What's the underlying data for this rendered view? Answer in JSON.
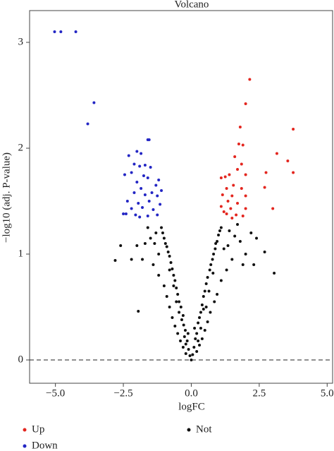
{
  "chart_data": {
    "type": "scatter",
    "title": "Volcano",
    "x_label": "logFC",
    "y_label": "−log10 (adj. P-value)",
    "xlim": [
      -5.95,
      5.2
    ],
    "ylim": [
      -0.22,
      3.3
    ],
    "xticks": [
      {
        "value": -5,
        "label": "−5.0"
      },
      {
        "value": -2.5,
        "label": "−2.5"
      },
      {
        "value": 0,
        "label": "0.0"
      },
      {
        "value": 2.5,
        "label": "2.5"
      },
      {
        "value": 5,
        "label": "5.0"
      }
    ],
    "yticks": [
      0,
      1,
      2,
      3
    ],
    "hline": 0,
    "series": [
      {
        "name": "Up",
        "color": "#e3261f",
        "x": [
          2.15,
          2.0,
          1.8,
          3.75,
          3.55,
          3.15,
          1.75,
          1.9,
          1.6,
          1.85,
          2.0,
          1.25,
          1.4,
          1.1,
          1.7,
          2.75,
          3.75,
          1.55,
          1.3,
          1.85,
          2.7,
          1.15,
          1.5,
          2.0,
          1.35,
          1.7,
          1.1,
          1.45,
          2.0,
          3.0,
          1.3,
          1.65,
          1.5,
          1.2,
          1.9
        ],
        "values": [
          2.65,
          2.42,
          2.2,
          2.18,
          1.88,
          1.95,
          2.04,
          2.03,
          1.92,
          1.85,
          1.75,
          1.73,
          1.75,
          1.72,
          1.8,
          1.77,
          1.77,
          1.65,
          1.62,
          1.62,
          1.63,
          1.56,
          1.55,
          1.55,
          1.5,
          1.48,
          1.45,
          1.43,
          1.43,
          1.43,
          1.38,
          1.37,
          1.34,
          1.4,
          1.36
        ]
      },
      {
        "name": "Down",
        "color": "#2326c4",
        "x": [
          -5.03,
          -4.8,
          -4.25,
          -3.58,
          -3.81,
          -1.55,
          -1.6,
          -2.3,
          -2.0,
          -1.85,
          -2.1,
          -1.9,
          -1.7,
          -1.5,
          -2.45,
          -2.2,
          -1.75,
          -1.6,
          -1.2,
          -1.3,
          -2.0,
          -1.85,
          -1.45,
          -1.1,
          -2.1,
          -1.7,
          -1.25,
          -2.35,
          -1.95,
          -1.55,
          -1.15,
          -2.2,
          -1.8,
          -1.4,
          -2.4,
          -2.05,
          -1.6,
          -1.25,
          -1.9,
          -2.5
        ],
        "values": [
          3.1,
          3.1,
          3.1,
          2.43,
          2.23,
          2.08,
          2.08,
          1.93,
          1.97,
          1.95,
          1.85,
          1.83,
          1.84,
          1.82,
          1.75,
          1.77,
          1.74,
          1.72,
          1.7,
          1.65,
          1.68,
          1.62,
          1.58,
          1.6,
          1.58,
          1.56,
          1.55,
          1.5,
          1.48,
          1.5,
          1.47,
          1.43,
          1.44,
          1.42,
          1.38,
          1.37,
          1.36,
          1.37,
          1.35,
          1.38
        ]
      },
      {
        "name": "Not",
        "color": "#111111",
        "x": [
          0,
          0.05,
          -0.05,
          0.1,
          -0.1,
          0.15,
          -0.15,
          0.2,
          -0.22,
          0.25,
          -0.28,
          0.3,
          -0.3,
          0.35,
          -0.38,
          0.4,
          -0.45,
          0.45,
          -0.5,
          0.5,
          -0.55,
          0.55,
          -0.6,
          0.6,
          -0.65,
          0.68,
          -0.7,
          0.72,
          -0.75,
          0.78,
          -0.8,
          0.82,
          -0.85,
          0.88,
          -0.9,
          0.9,
          -0.95,
          0.95,
          -1.0,
          1.0,
          -1.05,
          1.05,
          -1.1,
          1.1,
          -1.3,
          1.4,
          -1.5,
          1.6,
          -1.7,
          1.8,
          -2.0,
          2.2,
          2.4,
          -2.2,
          2.0,
          -1.4,
          1.5,
          -1.2,
          1.3,
          -1.0,
          1.1,
          -0.9,
          0.95,
          -0.8,
          0.85,
          -0.7,
          0.7,
          -0.6,
          0.6,
          -0.5,
          0.5,
          -0.4,
          0.4,
          -0.3,
          0.3,
          -0.2,
          0.2,
          -2.8,
          -2.6,
          2.7,
          3.05,
          -1.95,
          -0.2,
          0.12,
          -0.12,
          0.35,
          -0.35,
          0.45,
          -0.45,
          0.65,
          -0.65,
          0.8,
          -0.8,
          1.2,
          -1.2,
          1.7,
          -1.6,
          2.3,
          -0.55,
          0.55,
          -1.35,
          1.35,
          -1.8,
          1.9,
          -0.25,
          0.25
        ],
        "values": [
          0,
          0.05,
          0.04,
          0.12,
          0.1,
          0.2,
          0.18,
          0.25,
          0.28,
          0.35,
          0.33,
          0.4,
          0.42,
          0.45,
          0.5,
          0.52,
          0.55,
          0.6,
          0.62,
          0.65,
          0.68,
          0.72,
          0.75,
          0.78,
          0.8,
          0.85,
          0.86,
          0.9,
          0.92,
          0.95,
          0.98,
          1.0,
          1.02,
          1.05,
          1.07,
          1.1,
          1.1,
          1.12,
          1.15,
          1.18,
          1.2,
          1.22,
          1.25,
          1.25,
          1.2,
          1.22,
          1.15,
          1.17,
          1.1,
          1.12,
          1.08,
          1.2,
          1.15,
          0.95,
          1.0,
          0.9,
          0.95,
          0.8,
          0.85,
          0.7,
          0.75,
          0.6,
          0.62,
          0.5,
          0.55,
          0.4,
          0.45,
          0.32,
          0.36,
          0.25,
          0.28,
          0.18,
          0.2,
          0.12,
          0.14,
          0.06,
          0.08,
          0.94,
          1.08,
          1.02,
          0.82,
          0.46,
          0.15,
          0.3,
          0.25,
          0.3,
          0.38,
          0.48,
          0.45,
          0.65,
          0.7,
          0.82,
          0.85,
          1.05,
          1.0,
          1.28,
          1.25,
          0.9,
          0.55,
          0.5,
          1.1,
          1.08,
          0.95,
          0.9,
          0.22,
          0.18
        ]
      }
    ]
  }
}
